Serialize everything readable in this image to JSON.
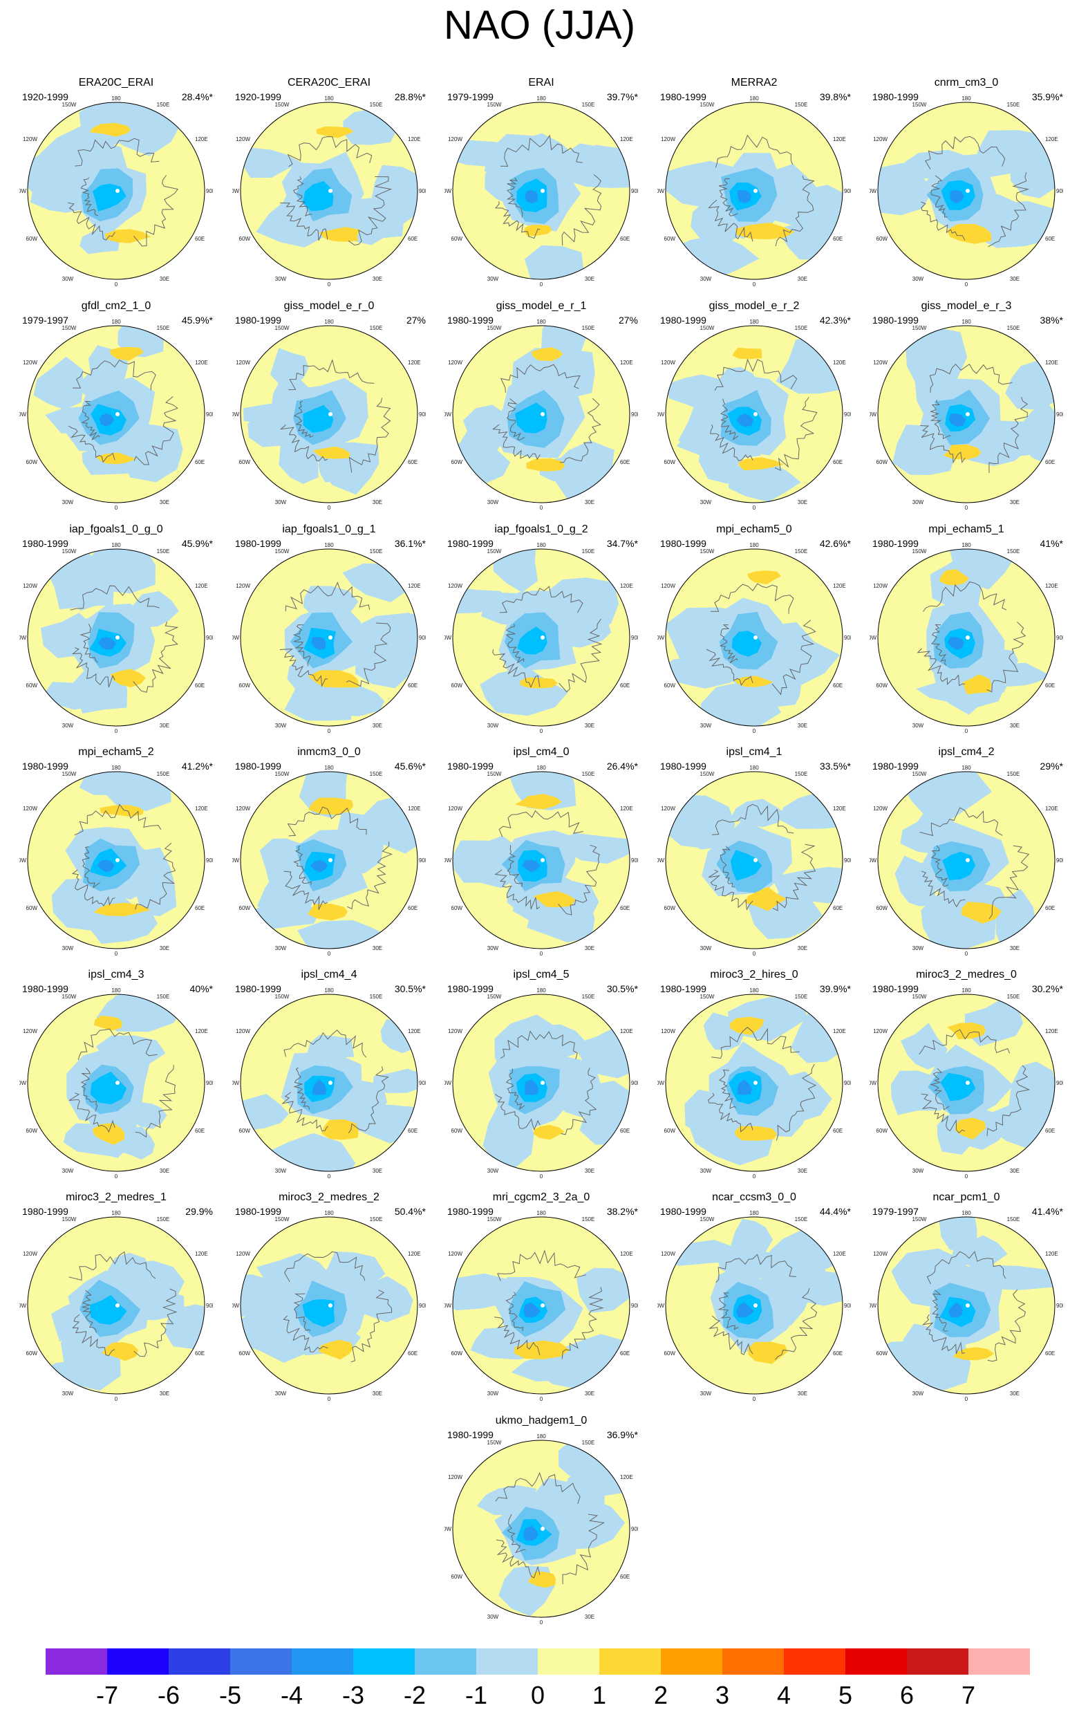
{
  "title": "NAO (JJA)",
  "colorbar": {
    "colors": [
      "#8a2be2",
      "#1e00ff",
      "#2d3fe6",
      "#3a74e6",
      "#2196f3",
      "#00bfff",
      "#6cc4f0",
      "#b3dcf3",
      "#fafaa0",
      "#fdd835",
      "#ffa000",
      "#ff6f00",
      "#ff3300",
      "#e60000",
      "#cc1a1a",
      "#ffb0b0"
    ],
    "labels": [
      "-7",
      "-6",
      "-5",
      "-4",
      "-3",
      "-2",
      "-1",
      "0",
      "1",
      "2",
      "3",
      "4",
      "5",
      "6",
      "7"
    ]
  },
  "map_ticks": {
    "top": "180",
    "bottom": "0",
    "upper_left": "150W",
    "upper_right": "150E",
    "left_upper": "120W",
    "right_upper": "120E",
    "left": "90W",
    "right": "90E",
    "left_lower": "60W",
    "right_lower": "60E",
    "lower_left": "30W",
    "lower_right": "30E"
  },
  "panels": [
    {
      "name": "ERA20C_ERAI",
      "period": "1920-1999",
      "pct": "28.4%*",
      "seed": 1
    },
    {
      "name": "CERA20C_ERAI",
      "period": "1920-1999",
      "pct": "28.8%*",
      "seed": 2
    },
    {
      "name": "ERAI",
      "period": "1979-1999",
      "pct": "39.7%*",
      "seed": 3
    },
    {
      "name": "MERRA2",
      "period": "1980-1999",
      "pct": "39.8%*",
      "seed": 4
    },
    {
      "name": "cnrm_cm3_0",
      "period": "1980-1999",
      "pct": "35.9%*",
      "seed": 5
    },
    {
      "name": "gfdl_cm2_1_0",
      "period": "1979-1997",
      "pct": "45.9%*",
      "seed": 6
    },
    {
      "name": "giss_model_e_r_0",
      "period": "1980-1999",
      "pct": "27%",
      "seed": 7
    },
    {
      "name": "giss_model_e_r_1",
      "period": "1980-1999",
      "pct": "27%",
      "seed": 8
    },
    {
      "name": "giss_model_e_r_2",
      "period": "1980-1999",
      "pct": "42.3%*",
      "seed": 9
    },
    {
      "name": "giss_model_e_r_3",
      "period": "1980-1999",
      "pct": "38%*",
      "seed": 10
    },
    {
      "name": "iap_fgoals1_0_g_0",
      "period": "1980-1999",
      "pct": "45.9%*",
      "seed": 11
    },
    {
      "name": "iap_fgoals1_0_g_1",
      "period": "1980-1999",
      "pct": "36.1%*",
      "seed": 12
    },
    {
      "name": "iap_fgoals1_0_g_2",
      "period": "1980-1999",
      "pct": "34.7%*",
      "seed": 13
    },
    {
      "name": "mpi_echam5_0",
      "period": "1980-1999",
      "pct": "42.6%*",
      "seed": 14
    },
    {
      "name": "mpi_echam5_1",
      "period": "1980-1999",
      "pct": "41%*",
      "seed": 15
    },
    {
      "name": "mpi_echam5_2",
      "period": "1980-1999",
      "pct": "41.2%*",
      "seed": 16
    },
    {
      "name": "inmcm3_0_0",
      "period": "1980-1999",
      "pct": "45.6%*",
      "seed": 17
    },
    {
      "name": "ipsl_cm4_0",
      "period": "1980-1999",
      "pct": "26.4%*",
      "seed": 18
    },
    {
      "name": "ipsl_cm4_1",
      "period": "1980-1999",
      "pct": "33.5%*",
      "seed": 19
    },
    {
      "name": "ipsl_cm4_2",
      "period": "1980-1999",
      "pct": "29%*",
      "seed": 20
    },
    {
      "name": "ipsl_cm4_3",
      "period": "1980-1999",
      "pct": "40%*",
      "seed": 21
    },
    {
      "name": "ipsl_cm4_4",
      "period": "1980-1999",
      "pct": "30.5%*",
      "seed": 22
    },
    {
      "name": "ipsl_cm4_5",
      "period": "1980-1999",
      "pct": "30.5%*",
      "seed": 23
    },
    {
      "name": "miroc3_2_hires_0",
      "period": "1980-1999",
      "pct": "39.9%*",
      "seed": 24
    },
    {
      "name": "miroc3_2_medres_0",
      "period": "1980-1999",
      "pct": "30.2%*",
      "seed": 25
    },
    {
      "name": "miroc3_2_medres_1",
      "period": "1980-1999",
      "pct": "29.9%",
      "seed": 26
    },
    {
      "name": "miroc3_2_medres_2",
      "period": "1980-1999",
      "pct": "50.4%*",
      "seed": 27
    },
    {
      "name": "mri_cgcm2_3_2a_0",
      "period": "1980-1999",
      "pct": "38.2%*",
      "seed": 28
    },
    {
      "name": "ncar_ccsm3_0_0",
      "period": "1980-1999",
      "pct": "44.4%*",
      "seed": 29
    },
    {
      "name": "ncar_pcm1_0",
      "period": "1979-1997",
      "pct": "41.4%*",
      "seed": 30
    },
    {
      "name": "ukmo_hadgem1_0",
      "period": "1980-1999",
      "pct": "36.9%*",
      "seed": 31
    }
  ]
}
